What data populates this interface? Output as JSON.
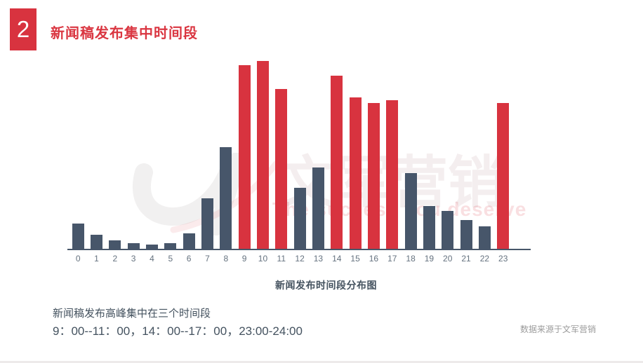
{
  "header": {
    "badge_number": "2",
    "title": "新闻稿发布集中时间段"
  },
  "watermark": {
    "logo": "wenjun-swirl-logo",
    "brand_text": "文军营销",
    "slogan": "The success you deserve"
  },
  "chart_data": {
    "type": "bar",
    "title": "新闻发布时间段分布图",
    "xlabel": "",
    "ylabel": "",
    "y_axis_shown": false,
    "grid": false,
    "legend": "none",
    "categories": [
      "0",
      "1",
      "2",
      "3",
      "4",
      "5",
      "6",
      "7",
      "8",
      "9",
      "10",
      "11",
      "12",
      "13",
      "14",
      "15",
      "16",
      "17",
      "18",
      "19",
      "20",
      "21",
      "22",
      "23"
    ],
    "values_relative_pct": [
      13.8,
      7.8,
      4.8,
      3.3,
      2.6,
      3.3,
      8.6,
      27.1,
      54.3,
      97.8,
      100,
      85.1,
      32.7,
      43.5,
      92.2,
      80.7,
      77.7,
      79.2,
      40.5,
      23.0,
      20.4,
      15.6,
      12.3,
      77.7
    ],
    "highlight_categories": [
      "9",
      "10",
      "11",
      "14",
      "15",
      "16",
      "17",
      "23"
    ],
    "colors": {
      "bar": "#47566a",
      "highlight": "#d8333f",
      "axis": "#47566a",
      "tick_label": "#65727f"
    }
  },
  "footer": {
    "summary_line1": "新闻稿发布高峰集中在三个时间段",
    "summary_line2": "9：00--11：00，14：00--17：00，23:00-24:00",
    "source": "数据来源于文军营销"
  },
  "theme": {
    "accent_red": "#d8333f",
    "dark_slate": "#47566a",
    "background": "#ffffff"
  }
}
